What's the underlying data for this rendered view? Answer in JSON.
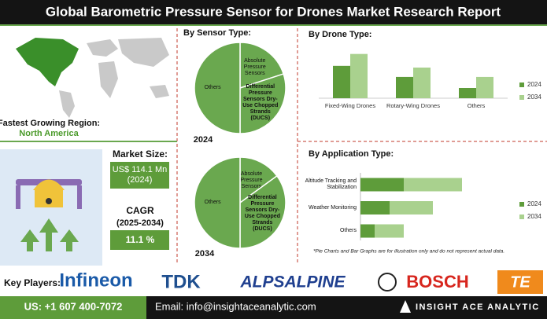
{
  "header": {
    "title": "Global Barometric Pressure Sensor for Drones Market Research Report"
  },
  "region": {
    "label": "Fastest Growing Region:",
    "value": "North America"
  },
  "market_size": {
    "label": "Market Size:",
    "value": "US$ 114.1 Mn (2024)"
  },
  "cagr": {
    "label": "CAGR",
    "period": "(2025-2034)",
    "value": "11.1 %"
  },
  "sensor_heading": "By Sensor Type:",
  "chart_data": [
    {
      "type": "pie",
      "title": "2024",
      "categories": [
        "Absolute Pressure Sensors",
        "Differential Pressure Sensors Dry-Use Chopped Strands (DUCS)",
        "Others"
      ],
      "values": [
        20,
        30,
        50
      ],
      "color": "#6aa84f"
    },
    {
      "type": "pie",
      "title": "2034",
      "categories": [
        "Absolute Pressure Sensors",
        "Differential Pressure Sensors Dry-Use Chopped Strands (DUCS)",
        "Others"
      ],
      "values": [
        15,
        35,
        50
      ],
      "color": "#6aa84f"
    },
    {
      "type": "bar",
      "title": "By  Drone Type:",
      "categories": [
        "Fixed-Wing Drones",
        "Rotary-Wing Drones",
        "Others"
      ],
      "ylim": [
        0,
        60
      ],
      "series": [
        {
          "name": "2024",
          "color": "#5e9c3a",
          "values": [
            38,
            25,
            12
          ]
        },
        {
          "name": "2034",
          "color": "#a9d18e",
          "values": [
            52,
            36,
            25
          ]
        }
      ]
    },
    {
      "type": "hbar-stacked",
      "title": "By Application Type:",
      "categories": [
        "Altitude Tracking and Stabilization",
        "Weather Monitoring",
        "Others"
      ],
      "xlim": [
        0,
        200
      ],
      "series": [
        {
          "name": "2024",
          "color": "#5e9c3a",
          "values": [
            55,
            37,
            18
          ]
        },
        {
          "name": "2034",
          "color": "#a9d18e",
          "values": [
            74,
            55,
            37
          ]
        }
      ],
      "note": "*Pie Charts and Bar Graphs are for illustration only and do not represent actual data."
    }
  ],
  "key_players": {
    "label": "Key Players:",
    "names": [
      "Infineon",
      "TDK",
      "ALPSALPINE",
      "BOSCH",
      "TE"
    ]
  },
  "footer": {
    "phone": "US: +1 607 400-7072",
    "email": "Email: info@insightaceanalytic.com",
    "brand": "INSIGHT ACE ANALYTIC"
  }
}
